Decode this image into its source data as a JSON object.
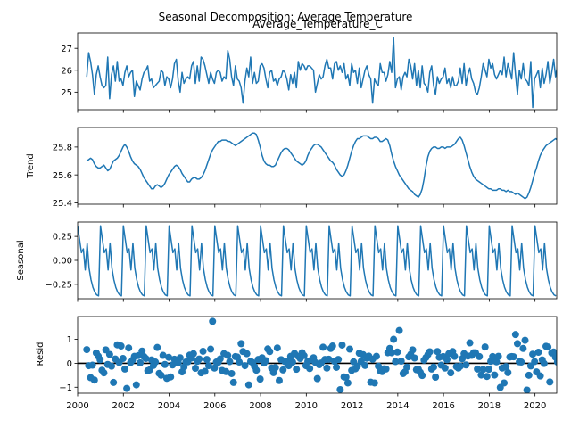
{
  "figure": {
    "suptitle": "Seasonal Decomposition: Average Temperature"
  },
  "chart_data": [
    {
      "type": "line",
      "panel": "observed",
      "title": "Average_Temperature_C",
      "ylabel": "",
      "xlim": [
        2000.0,
        2020.95
      ],
      "ylim": [
        24.2,
        27.7
      ],
      "yticks": [
        25,
        26,
        27
      ],
      "x_start": 2000.4,
      "x_step": 0.08333,
      "color": "#1f77b4",
      "values": [
        25.7,
        26.8,
        26.4,
        25.8,
        24.9,
        25.8,
        26.2,
        25.7,
        25.3,
        25.2,
        25.3,
        26.6,
        24.7,
        25.8,
        26.2,
        25.5,
        26.4,
        25.5,
        25.6,
        25.3,
        25.9,
        26.2,
        25.7,
        25.9,
        26.0,
        24.8,
        25.5,
        25.3,
        25.1,
        25.6,
        25.9,
        26.0,
        26.2,
        25.5,
        25.6,
        25.2,
        25.3,
        25.4,
        25.5,
        26.0,
        25.9,
        25.3,
        25.7,
        25.6,
        25.2,
        25.6,
        26.3,
        26.5,
        25.5,
        25.0,
        25.9,
        25.4,
        25.6,
        25.7,
        25.6,
        26.2,
        26.4,
        25.4,
        26.2,
        25.5,
        26.6,
        26.5,
        26.2,
        25.8,
        25.4,
        25.9,
        25.6,
        25.4,
        25.9,
        26.0,
        25.9,
        25.5,
        25.7,
        25.6,
        26.9,
        26.5,
        25.7,
        25.3,
        26.2,
        25.6,
        25.5,
        25.2,
        24.5,
        25.5,
        26.1,
        25.7,
        26.6,
        25.4,
        25.9,
        25.4,
        25.5,
        26.2,
        26.3,
        26.1,
        25.6,
        25.2,
        25.9,
        26.0,
        25.5,
        25.6,
        25.3,
        25.6,
        25.7,
        26.0,
        25.9,
        25.6,
        25.1,
        25.8,
        25.4,
        25.9,
        25.2,
        26.4,
        26.0,
        26.3,
        26.2,
        26.0,
        26.2,
        26.2,
        26.1,
        26.0,
        25.0,
        25.4,
        25.8,
        25.6,
        25.7,
        26.2,
        26.5,
        26.1,
        26.1,
        25.6,
        26.3,
        26.4,
        26.0,
        26.2,
        25.9,
        26.3,
        25.6,
        25.8,
        25.3,
        26.3,
        25.9,
        26.0,
        25.4,
        26.1,
        25.2,
        25.6,
        26.0,
        26.2,
        25.8,
        25.6,
        24.5,
        25.6,
        25.4,
        25.3,
        26.3,
        25.9,
        25.9,
        25.5,
        25.8,
        26.4,
        25.9,
        27.5,
        25.2,
        25.6,
        25.7,
        25.1,
        25.7,
        25.9,
        25.7,
        26.5,
        26.2,
        25.6,
        26.3,
        25.3,
        26.0,
        25.2,
        26.2,
        25.4,
        25.3,
        25.0,
        25.9,
        26.2,
        25.3,
        24.9,
        25.7,
        25.4,
        25.6,
        25.7,
        26.1,
        25.4,
        25.6,
        25.2,
        25.7,
        25.3,
        25.3,
        25.5,
        26.1,
        25.4,
        26.3,
        25.3,
        25.8,
        26.1,
        25.6,
        25.4,
        25.0,
        24.9,
        25.2,
        25.7,
        26.3,
        26.0,
        25.7,
        26.5,
        26.1,
        26.3,
        25.8,
        25.6,
        25.8,
        26.0,
        25.8,
        26.6,
        25.7,
        26.3,
        26.0,
        25.6,
        26.8,
        25.8,
        24.9,
        26.0,
        25.6,
        26.3,
        25.6,
        25.5,
        25.3,
        26.4,
        24.3,
        25.6,
        25.8,
        26.0,
        25.2,
        26.1,
        25.4,
        25.8,
        26.4,
        25.4,
        25.9,
        26.5,
        25.7,
        26.2,
        25.6,
        25.9,
        25.2,
        25.8,
        25.3,
        26.1,
        25.7,
        25.4,
        26.7,
        25.8,
        25.9,
        25.8,
        26.1,
        25.6,
        25.5,
        25.3,
        25.7,
        25.2,
        25.7,
        25.8,
        25.9,
        26.1,
        26.6,
        25.9,
        25.7,
        26.7,
        26.2,
        25.2,
        25.1,
        25.1
      ]
    },
    {
      "type": "line",
      "panel": "trend",
      "title": "",
      "ylabel": "Trend",
      "xlim": [
        2000.0,
        20.95
      ],
      "ylim": [
        25.39,
        25.94
      ],
      "yticks": [
        25.4,
        25.6,
        25.8
      ],
      "x_start": 2000.4,
      "x_step": 0.08333,
      "color": "#1f77b4",
      "values": [
        25.7,
        25.71,
        25.72,
        25.71,
        25.68,
        25.66,
        25.65,
        25.65,
        25.66,
        25.67,
        25.65,
        25.63,
        25.64,
        25.67,
        25.7,
        25.71,
        25.72,
        25.74,
        25.77,
        25.8,
        25.82,
        25.8,
        25.77,
        25.73,
        25.7,
        25.68,
        25.67,
        25.66,
        25.64,
        25.61,
        25.58,
        25.56,
        25.54,
        25.52,
        25.5,
        25.5,
        25.52,
        25.53,
        25.52,
        25.51,
        25.52,
        25.54,
        25.57,
        25.6,
        25.62,
        25.64,
        25.66,
        25.67,
        25.66,
        25.64,
        25.61,
        25.59,
        25.57,
        25.55,
        25.55,
        25.57,
        25.58,
        25.58,
        25.57,
        25.57,
        25.58,
        25.6,
        25.63,
        25.67,
        25.71,
        25.75,
        25.78,
        25.8,
        25.82,
        25.84,
        25.84,
        25.85,
        25.85,
        25.85,
        25.84,
        25.84,
        25.83,
        25.82,
        25.81,
        25.82,
        25.83,
        25.84,
        25.85,
        25.86,
        25.87,
        25.88,
        25.89,
        25.9,
        25.9,
        25.89,
        25.85,
        25.8,
        25.74,
        25.7,
        25.68,
        25.67,
        25.67,
        25.66,
        25.66,
        25.67,
        25.7,
        25.73,
        25.76,
        25.78,
        25.79,
        25.79,
        25.78,
        25.76,
        25.74,
        25.72,
        25.7,
        25.69,
        25.68,
        25.67,
        25.68,
        25.7,
        25.74,
        25.77,
        25.79,
        25.81,
        25.82,
        25.82,
        25.81,
        25.8,
        25.78,
        25.76,
        25.74,
        25.72,
        25.7,
        25.69,
        25.67,
        25.64,
        25.62,
        25.6,
        25.59,
        25.6,
        25.63,
        25.67,
        25.72,
        25.77,
        25.81,
        25.84,
        25.86,
        25.86,
        25.87,
        25.88,
        25.88,
        25.88,
        25.87,
        25.86,
        25.86,
        25.87,
        25.87,
        25.86,
        25.84,
        25.84,
        25.85,
        25.86,
        25.85,
        25.81,
        25.75,
        25.7,
        25.66,
        25.63,
        25.6,
        25.58,
        25.56,
        25.54,
        25.52,
        25.5,
        25.49,
        25.48,
        25.46,
        25.45,
        25.44,
        25.46,
        25.5,
        25.57,
        25.66,
        25.73,
        25.77,
        25.79,
        25.8,
        25.8,
        25.79,
        25.79,
        25.8,
        25.8,
        25.79,
        25.8,
        25.8,
        25.8,
        25.81,
        25.82,
        25.84,
        25.86,
        25.87,
        25.85,
        25.81,
        25.76,
        25.71,
        25.66,
        25.62,
        25.59,
        25.57,
        25.56,
        25.55,
        25.54,
        25.53,
        25.52,
        25.51,
        25.5,
        25.5,
        25.49,
        25.49,
        25.49,
        25.5,
        25.5,
        25.49,
        25.49,
        25.48,
        25.49,
        25.48,
        25.48,
        25.47,
        25.46,
        25.47,
        25.46,
        25.45,
        25.44,
        25.43,
        25.44,
        25.47,
        25.51,
        25.56,
        25.61,
        25.65,
        25.7,
        25.74,
        25.77,
        25.79,
        25.81,
        25.82,
        25.83,
        25.84,
        25.85,
        25.86,
        25.85,
        25.84,
        25.83,
        25.81,
        25.8,
        25.79,
        25.78,
        25.78,
        25.8,
        25.82,
        25.84,
        25.84,
        25.82,
        25.78,
        25.74,
        25.71,
        25.68,
        25.67,
        25.67,
        25.68,
        25.71,
        25.73,
        25.73,
        25.72,
        25.71,
        25.69,
        25.66,
        25.65,
        25.66,
        25.68,
        25.7,
        25.72,
        25.73,
        25.73,
        25.72,
        25.73,
        25.74,
        25.74,
        25.73,
        25.73,
        25.73,
        25.74,
        25.73,
        25.73,
        25.72,
        25.69,
        25.65,
        25.61,
        25.58,
        25.57,
        25.58,
        25.6,
        25.62,
        25.64,
        25.64,
        25.63,
        25.62,
        25.62,
        25.63,
        25.64,
        25.64,
        25.64,
        25.65,
        25.67,
        25.7,
        25.73,
        25.76,
        25.79,
        25.81,
        25.81,
        25.8,
        25.8,
        25.8,
        25.81,
        25.83,
        25.85,
        25.87,
        25.89,
        25.9,
        25.91,
        25.91,
        25.9,
        25.88,
        25.86,
        25.84
      ]
    },
    {
      "type": "line",
      "panel": "seasonal",
      "title": "",
      "ylabel": "Seasonal",
      "xlim": [
        2000.0,
        2020.95
      ],
      "ylim": [
        -0.4,
        0.4
      ],
      "yticks": [
        -0.25,
        0.0,
        0.25
      ],
      "color": "#1f77b4",
      "period": 12,
      "cycle_values": [
        0.36,
        0.22,
        0.08,
        0.12,
        -0.1,
        0.18,
        -0.08,
        -0.2,
        -0.28,
        -0.33,
        -0.36,
        -0.37
      ],
      "n_points": 252
    },
    {
      "type": "scatter",
      "panel": "resid",
      "title": "",
      "ylabel": "Resid",
      "xlim": [
        2000.0,
        2020.95
      ],
      "ylim": [
        -1.25,
        1.95
      ],
      "yticks": [
        -1,
        0,
        1
      ],
      "xticks": [
        2000,
        2002,
        2004,
        2006,
        2008,
        2010,
        2012,
        2014,
        2016,
        2018,
        2020
      ],
      "zero_line": true,
      "x_start": 2000.4,
      "x_step": 0.08333,
      "color": "#1f77b4",
      "values": [
        0.57,
        -0.1,
        -0.6,
        -0.08,
        -0.7,
        0.43,
        0.3,
        0.15,
        -0.29,
        -0.4,
        0.56,
        -0.05,
        0.37,
        -0.12,
        -0.8,
        0.18,
        0.77,
        0.03,
        0.72,
        0.2,
        -0.24,
        -1.05,
        0.64,
        0.03,
        0.13,
        0.29,
        -0.9,
        0.32,
        0.02,
        0.51,
        0.28,
        0.2,
        -0.31,
        -0.28,
        0.14,
        -0.09,
        0.05,
        0.66,
        -0.42,
        -0.5,
        0.33,
        -0.05,
        -0.63,
        0.25,
        -0.57,
        -0.07,
        0.17,
        0.08,
        0.02,
        0.23,
        -0.36,
        -0.16,
        0.05,
        0.06,
        0.34,
        0.22,
        0.4,
        -0.21,
        0.08,
        0.18,
        -0.4,
        0.5,
        -0.34,
        0.16,
        -0.1,
        0.59,
        1.75,
        -0.2,
        0.05,
        0.04,
        0.18,
        -0.3,
        0.4,
        -0.35,
        0.33,
        0.07,
        -0.43,
        -0.8,
        0.28,
        0.26,
        0.05,
        0.82,
        0.49,
        -0.1,
        0.4,
        -0.9,
        0.08,
        0.03,
        -0.13,
        -0.29,
        0.16,
        -0.66,
        0.23,
        0.01,
        0.11,
        0.6,
        0.49,
        -0.2,
        -0.39,
        -0.18,
        0.64,
        -0.72,
        0.15,
        -0.28,
        0.07,
        0.07,
        -0.1,
        0.29,
        0.05,
        0.41,
        -0.25,
        0.29,
        0.2,
        0.44,
        0.32,
        -0.1,
        0.08,
        -0.22,
        0.14,
        0.23,
        0.03,
        -0.64,
        -0.06,
        0.01,
        0.67,
        0.16,
        -0.2,
        0.17,
        0.62,
        0.72,
        0.08,
        -0.17,
        0.16,
        -1.1,
        0.76,
        -0.57,
        -0.58,
        -0.82,
        0.59,
        -0.3,
        0.06,
        -0.23,
        -0.12,
        0.42,
        0.08,
        0.36,
        -0.09,
        0.21,
        0.3,
        -0.79,
        0.17,
        -0.82,
        0.29,
        -0.12,
        -0.32,
        -0.35,
        -0.23,
        -0.24,
        0.44,
        0.62,
        0.44,
        1.0,
        0.07,
        0.47,
        1.37,
        0.09,
        -0.43,
        -0.36,
        -0.16,
        0.27,
        0.37,
        0.56,
        0.22,
        -0.27,
        -0.25,
        -0.38,
        -0.51,
        0.13,
        0.24,
        0.36,
        0.48,
        -0.24,
        -0.16,
        -0.58,
        0.49,
        0.25,
        -0.08,
        0.28,
        -0.2,
        0.15,
        0.4,
        -0.4,
        0.49,
        0.29,
        -0.14,
        -0.2,
        -0.12,
        0.19,
        0.4,
        -0.07,
        0.3,
        0.85,
        0.33,
        0.44,
        0.44,
        -0.24,
        0.28,
        -0.49,
        -0.26,
        0.68,
        -0.55,
        -0.25,
        0.08,
        0.28,
        -0.49,
        0.06,
        0.29,
        -1.01,
        -0.2,
        -0.82,
        -0.14,
        -0.39,
        0.26,
        0.28,
        0.27,
        1.2,
        0.82,
        0.06,
        0.05,
        0.62,
        0.96,
        -1.12,
        -0.5,
        -0.11,
        0.38,
        0.07,
        -0.36,
        0.46,
        -0.53,
        0.14,
        -0.01,
        0.71,
        0.68,
        -0.78,
        0.43,
        0.47,
        0.25,
        0.05,
        0.13,
        -0.16,
        -0.1,
        0.12,
        0.31,
        0.59,
        0.2,
        -0.15,
        0.67,
        0.22,
        -0.28,
        -0.3,
        0.1,
        -0.18,
        0.55,
        0.13,
        -0.08,
        0.22,
        0.13,
        -0.21,
        -0.36,
        -0.42,
        0.1,
        0.68,
        -0.05,
        -0.35,
        0.21,
        0.62,
        -0.32,
        0.11,
        0.1
      ]
    }
  ]
}
